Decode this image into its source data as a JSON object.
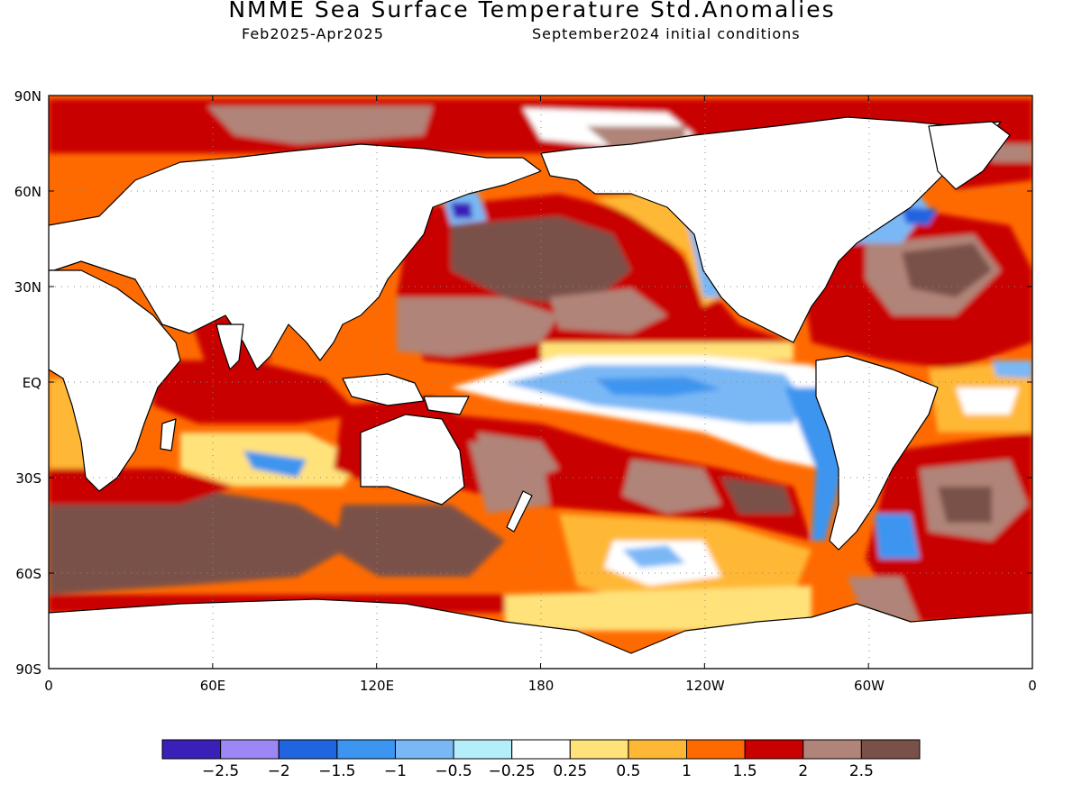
{
  "header": {
    "title": "NMME Sea Surface Temperature Std.Anomalies",
    "period": "Feb2025-Apr2025",
    "initial_conditions": "September2024 initial conditions"
  },
  "map": {
    "projection": "equirectangular",
    "lon_range": [
      0,
      360
    ],
    "lat_range": [
      -90,
      90
    ],
    "grid": "dotted",
    "lat_ticks": [
      "90N",
      "60N",
      "30N",
      "EQ",
      "30S",
      "60S",
      "90S"
    ],
    "lon_ticks": [
      "0",
      "60E",
      "120E",
      "180",
      "120W",
      "60W",
      "0"
    ]
  },
  "legend": {
    "colors": [
      "#3a1fb8",
      "#9d86f5",
      "#2164e0",
      "#3c95f0",
      "#7ab8f5",
      "#b4eefa",
      "#ffffff",
      "#ffe27a",
      "#ffb836",
      "#ff6a00",
      "#c90000",
      "#b08478",
      "#7a5148"
    ],
    "labels": [
      "-2.5",
      "-2",
      "-1.5",
      "-1",
      "-0.5",
      "-0.25",
      "0.25",
      "0.5",
      "1",
      "1.5",
      "2",
      "2.5"
    ]
  },
  "palette": {
    "land": "#ffffff",
    "coast": "#000000"
  }
}
